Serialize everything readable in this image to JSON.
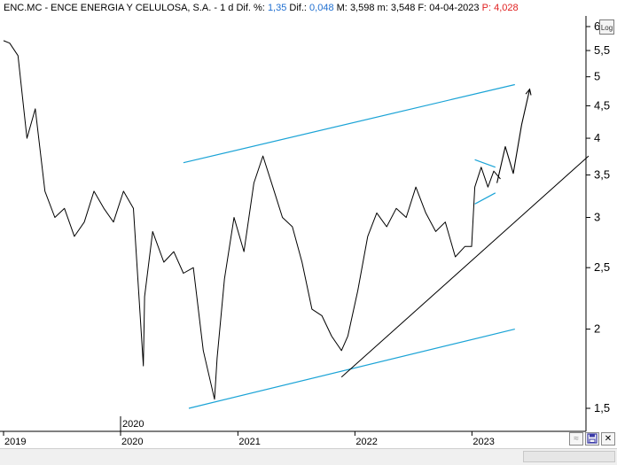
{
  "header": {
    "ticker": "ENC.MC - ENCE ENERGIA Y CELULOSA, S.A.",
    "sep1": " - ",
    "interval": "1 d",
    "dif_pct_label": "Dif. %:",
    "dif_pct_value": "1,35",
    "dif_label": "Dif.:",
    "dif_value": "0,048",
    "max_label": "M:",
    "max_value": "3,598",
    "min_label": "m:",
    "min_value": "3,548",
    "date_label": "F:",
    "date_value": "04-04-2023",
    "price_label": "P:",
    "price_value": "4,028"
  },
  "toolbar": {
    "log_label": "Log"
  },
  "colors": {
    "price": "#000000",
    "channel": "#1aa3d6",
    "trendline": "#000000",
    "pval": "#e02020",
    "val": "#1f6fd0"
  },
  "icons": {
    "zoom": "zoom-icon",
    "save": "save-icon",
    "close": "close-icon"
  },
  "chart_data": {
    "type": "line",
    "title": "",
    "y_scale": "log",
    "ylim": [
      1.45,
      6.3
    ],
    "xlim": [
      "2019-01-01",
      "2023-12-31"
    ],
    "y_ticks": [
      {
        "value": 1.5,
        "label": "1,5"
      },
      {
        "value": 2,
        "label": "2"
      },
      {
        "value": 2.5,
        "label": "2,5"
      },
      {
        "value": 3,
        "label": "3"
      },
      {
        "value": 3.5,
        "label": "3,5"
      },
      {
        "value": 4,
        "label": "4"
      },
      {
        "value": 4.5,
        "label": "4,5"
      },
      {
        "value": 5,
        "label": "5"
      },
      {
        "value": 5.5,
        "label": "5,5"
      },
      {
        "value": 6,
        "label": "6"
      }
    ],
    "x_ticks": [
      {
        "date": "2019-01-01",
        "label": "2019"
      },
      {
        "date": "2020-01-01",
        "label": "2020"
      },
      {
        "date": "2021-01-01",
        "label": "2021"
      },
      {
        "date": "2022-01-01",
        "label": "2022"
      },
      {
        "date": "2023-01-01",
        "label": "2023"
      }
    ],
    "annotations": [
      {
        "date": "2020-01-01",
        "label": "2020"
      }
    ],
    "series": [
      {
        "type": "price",
        "x": [
          "2019-01-01",
          "2019-01-20",
          "2019-02-15",
          "2019-03-15",
          "2019-04-10",
          "2019-05-10",
          "2019-06-10",
          "2019-07-10",
          "2019-08-10",
          "2019-09-10",
          "2019-10-10",
          "2019-11-10",
          "2019-12-10",
          "2020-01-10",
          "2020-02-10",
          "2020-03-12",
          "2020-03-16",
          "2020-04-10",
          "2020-05-15",
          "2020-06-15",
          "2020-07-15",
          "2020-08-15",
          "2020-09-15",
          "2020-10-20",
          "2020-10-28",
          "2020-11-20",
          "2020-12-20",
          "2021-01-20",
          "2021-02-20",
          "2021-03-20",
          "2021-04-20",
          "2021-05-20",
          "2021-06-20",
          "2021-07-20",
          "2021-08-20",
          "2021-09-20",
          "2021-10-20",
          "2021-11-20",
          "2021-12-10",
          "2022-01-10",
          "2022-02-10",
          "2022-03-10",
          "2022-04-10",
          "2022-05-10",
          "2022-06-10",
          "2022-07-10",
          "2022-08-10",
          "2022-09-10",
          "2022-10-10",
          "2022-11-10",
          "2022-12-10",
          "2022-12-31",
          "2023-01-10",
          "2023-01-30",
          "2023-02-20",
          "2023-03-10",
          "2023-03-31"
        ],
        "y": [
          5.7,
          5.65,
          5.4,
          4.0,
          4.45,
          3.3,
          3.0,
          3.1,
          2.8,
          2.95,
          3.3,
          3.1,
          2.95,
          3.3,
          3.1,
          1.75,
          2.25,
          2.85,
          2.55,
          2.65,
          2.45,
          2.5,
          1.85,
          1.55,
          1.8,
          2.4,
          3.0,
          2.65,
          3.4,
          3.75,
          3.35,
          3.0,
          2.9,
          2.55,
          2.15,
          2.1,
          1.95,
          1.85,
          1.95,
          2.3,
          2.8,
          3.05,
          2.9,
          3.1,
          3.0,
          3.35,
          3.05,
          2.85,
          2.95,
          2.6,
          2.7,
          2.7,
          3.35,
          3.6,
          3.35,
          3.55,
          3.45
        ]
      },
      {
        "type": "channel-upper",
        "x": [
          "2020-07-15",
          "2023-05-15"
        ],
        "y": [
          3.66,
          4.86
        ]
      },
      {
        "type": "channel-lower",
        "x": [
          "2020-08-01",
          "2023-05-15"
        ],
        "y": [
          1.5,
          2.0
        ]
      },
      {
        "type": "trendline",
        "x": [
          "2021-11-20",
          "2023-12-31"
        ],
        "y": [
          1.68,
          3.75
        ]
      },
      {
        "type": "flag-upper",
        "x": [
          "2023-01-10",
          "2023-03-15"
        ],
        "y": [
          3.7,
          3.6
        ]
      },
      {
        "type": "flag-lower",
        "x": [
          "2023-01-10",
          "2023-03-15"
        ],
        "y": [
          3.15,
          3.28
        ]
      },
      {
        "type": "projection",
        "x": [
          "2023-03-20",
          "2023-04-15",
          "2023-05-10",
          "2023-06-05",
          "2023-06-30"
        ],
        "y": [
          3.4,
          3.88,
          3.52,
          4.2,
          4.78
        ]
      }
    ]
  }
}
